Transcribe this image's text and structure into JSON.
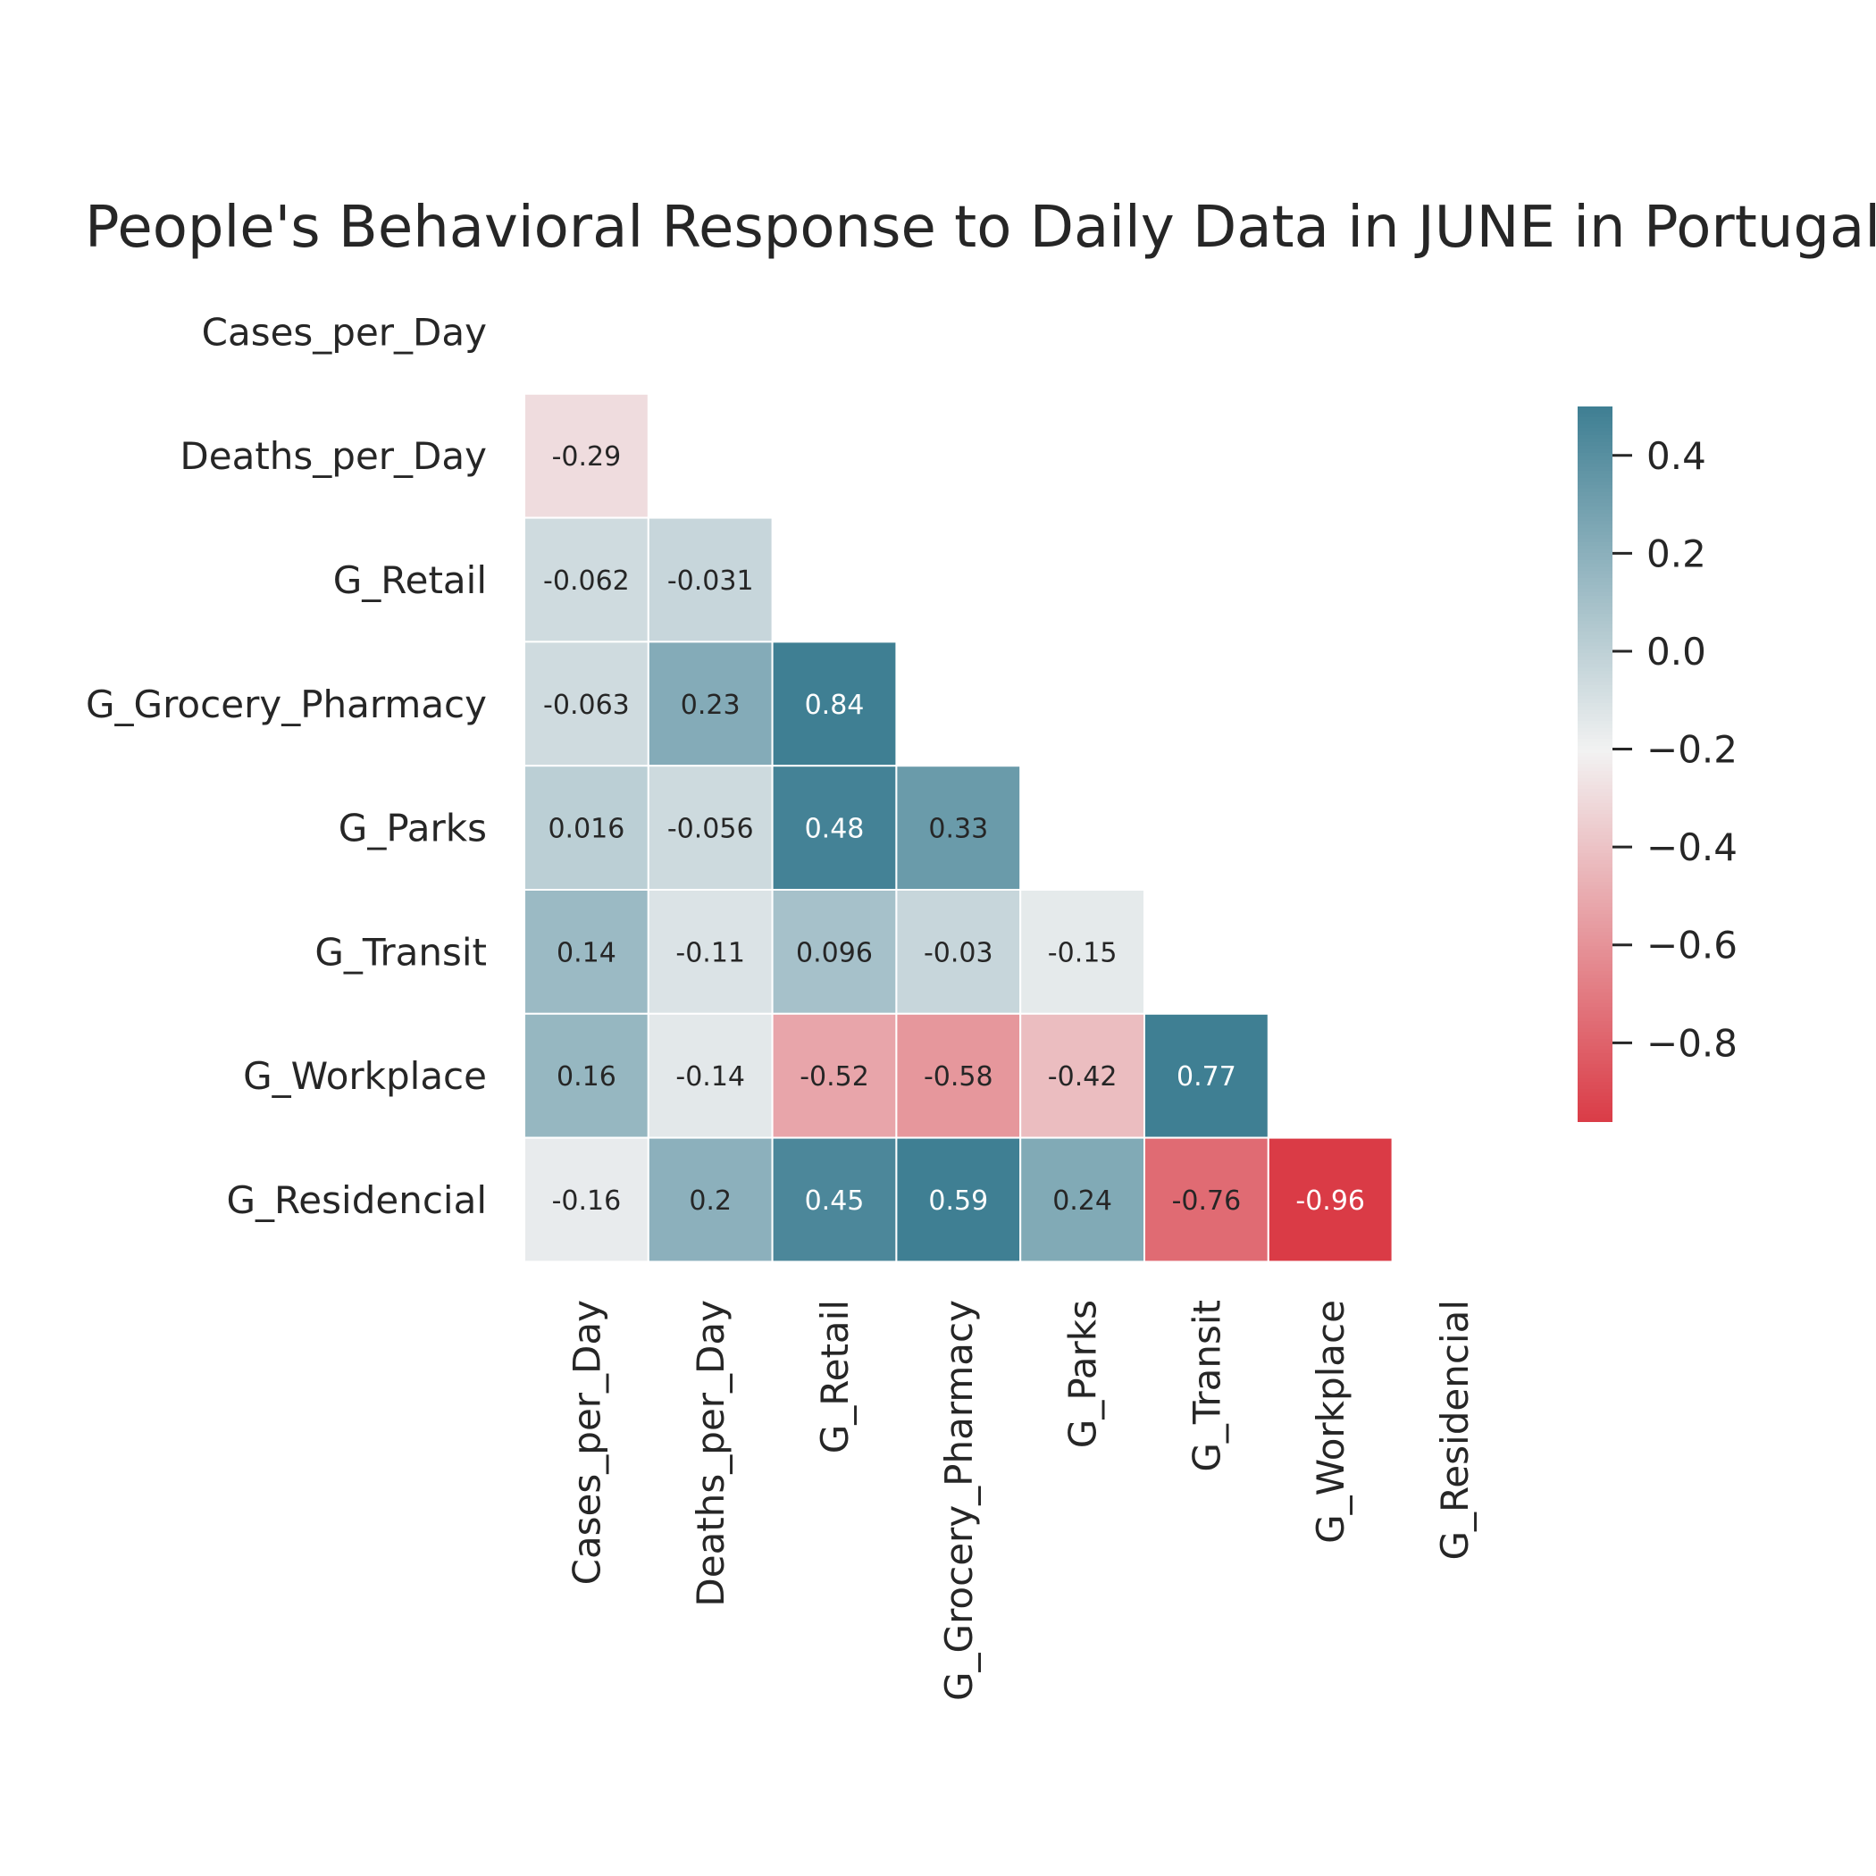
{
  "chart_data": {
    "type": "heatmap",
    "title": "People's Behavioral Response to Daily Data in JUNE in Portugal",
    "labels": [
      "Cases_per_Day",
      "Deaths_per_Day",
      "G_Retail",
      "G_Grocery_Pharmacy",
      "G_Parks",
      "G_Transit",
      "G_Workplace",
      "G_Residencial"
    ],
    "matrix": [
      [
        null,
        null,
        null,
        null,
        null,
        null,
        null,
        null
      ],
      [
        -0.29,
        null,
        null,
        null,
        null,
        null,
        null,
        null
      ],
      [
        -0.062,
        -0.031,
        null,
        null,
        null,
        null,
        null,
        null
      ],
      [
        -0.063,
        0.23,
        0.84,
        null,
        null,
        null,
        null,
        null
      ],
      [
        0.016,
        -0.056,
        0.48,
        0.33,
        null,
        null,
        null,
        null
      ],
      [
        0.14,
        -0.11,
        0.096,
        -0.03,
        -0.15,
        null,
        null,
        null
      ],
      [
        0.16,
        -0.14,
        -0.52,
        -0.58,
        -0.42,
        0.77,
        null,
        null
      ],
      [
        -0.16,
        0.2,
        0.45,
        0.59,
        0.24,
        -0.76,
        -0.96,
        null
      ]
    ],
    "cell_text": [
      [
        null,
        null,
        null,
        null,
        null,
        null,
        null,
        null
      ],
      [
        "-0.29",
        null,
        null,
        null,
        null,
        null,
        null,
        null
      ],
      [
        "-0.062",
        "-0.031",
        null,
        null,
        null,
        null,
        null,
        null
      ],
      [
        "-0.063",
        "0.23",
        "0.84",
        null,
        null,
        null,
        null,
        null
      ],
      [
        "0.016",
        "-0.056",
        "0.48",
        "0.33",
        null,
        null,
        null,
        null
      ],
      [
        "0.14",
        "-0.11",
        "0.096",
        "-0.03",
        "-0.15",
        null,
        null,
        null
      ],
      [
        "0.16",
        "-0.14",
        "-0.52",
        "-0.58",
        "-0.42",
        "0.77",
        null,
        null
      ],
      [
        "-0.16",
        "0.2",
        "0.45",
        "0.59",
        "0.24",
        "-0.76",
        "-0.96",
        null
      ]
    ],
    "colorbar": {
      "vmin": -0.96,
      "vmax": 0.5,
      "center": -0.2,
      "ticks": [
        0.4,
        0.2,
        0.0,
        -0.2,
        -0.4,
        -0.6,
        -0.8
      ],
      "tick_labels": [
        "0.4",
        "0.2",
        "0.0",
        "−0.2",
        "−0.4",
        "−0.6",
        "−0.8"
      ]
    },
    "colors": {
      "negative": "#DA3B46",
      "neutral": "#F2F2F2",
      "positive": "#3F7F93",
      "cell_border": "#ffffff"
    },
    "mask": "upper-triangle-including-diagonal"
  }
}
